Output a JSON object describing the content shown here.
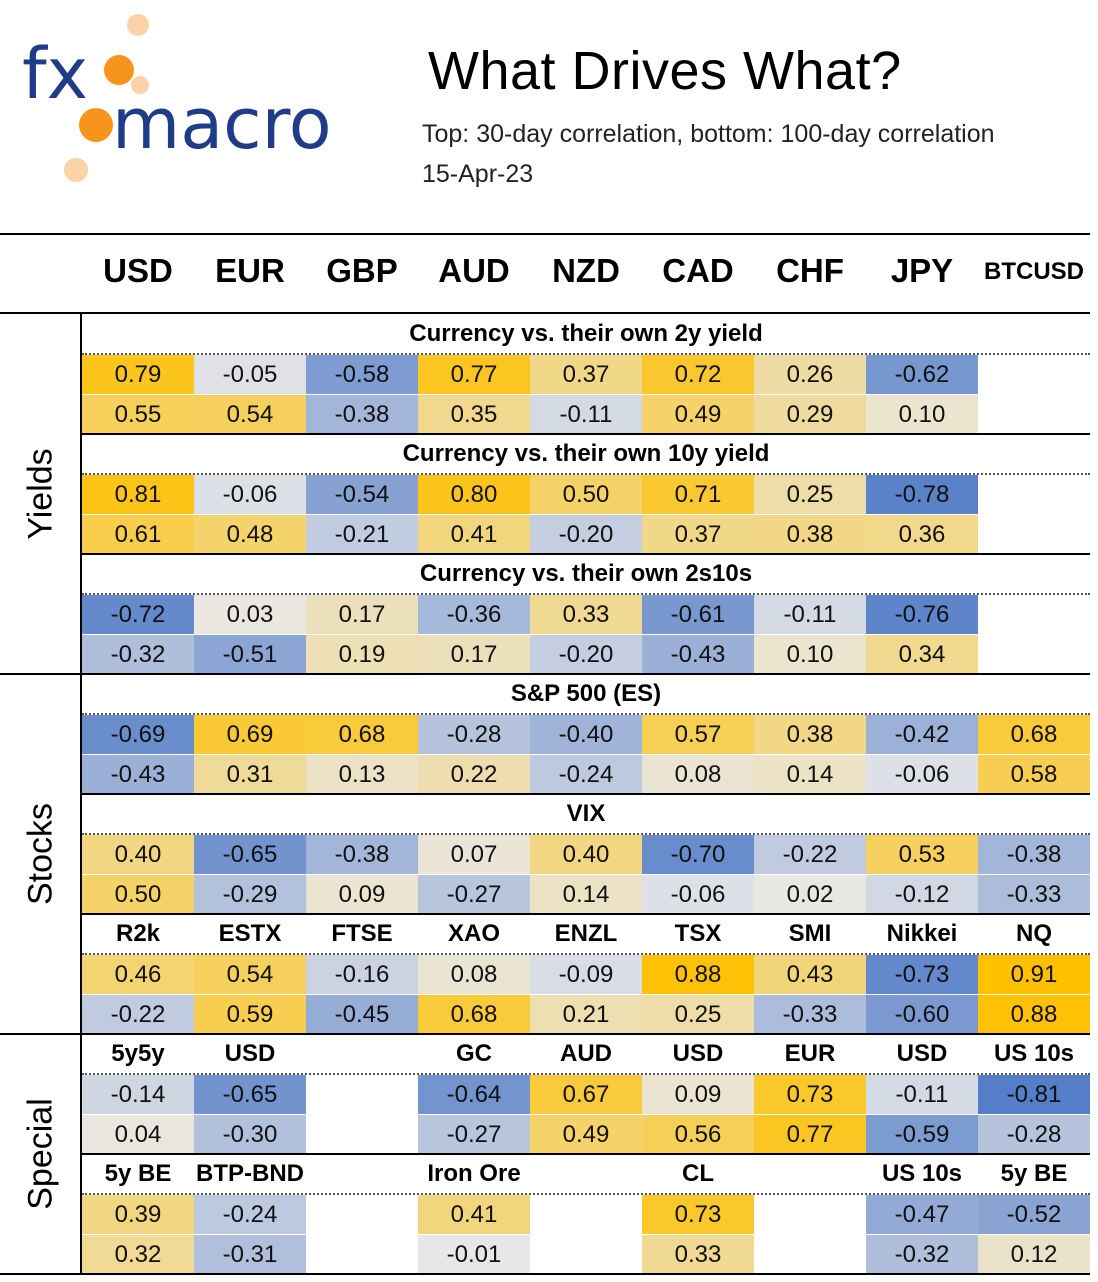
{
  "header": {
    "logo_text_1": "fx",
    "logo_text_2": "macro",
    "title": "What Drives What?",
    "subtitle": "Top: 30-day correlation, bottom: 100-day correlation",
    "date": "15-Apr-23"
  },
  "colors": {
    "positive": "#FFC000",
    "negative": "#4472C4",
    "neutral": "#E8E8E8",
    "logo_blue": "#1F3C88",
    "logo_orange": "#F7941D"
  },
  "chart_data": {
    "type": "table",
    "columns": [
      "USD",
      "EUR",
      "GBP",
      "AUD",
      "NZD",
      "CAD",
      "CHF",
      "JPY",
      "BTCUSD"
    ],
    "groups": [
      "Yields",
      "Stocks",
      "Special"
    ],
    "blocks": [
      {
        "group": "Yields",
        "title": "Currency vs. their own 2y yield",
        "top": [
          0.79,
          -0.05,
          -0.58,
          0.77,
          0.37,
          0.72,
          0.26,
          -0.62,
          null
        ],
        "bottom": [
          0.55,
          0.54,
          -0.38,
          0.35,
          -0.11,
          0.49,
          0.29,
          0.1,
          null
        ]
      },
      {
        "group": "Yields",
        "title": "Currency vs. their own 10y yield",
        "top": [
          0.81,
          -0.06,
          -0.54,
          0.8,
          0.5,
          0.71,
          0.25,
          -0.78,
          null
        ],
        "bottom": [
          0.61,
          0.48,
          -0.21,
          0.41,
          -0.2,
          0.37,
          0.38,
          0.36,
          null
        ]
      },
      {
        "group": "Yields",
        "title": "Currency vs. their own 2s10s",
        "top": [
          -0.72,
          0.03,
          0.17,
          -0.36,
          0.33,
          -0.61,
          -0.11,
          -0.76,
          null
        ],
        "bottom": [
          -0.32,
          -0.51,
          0.19,
          0.17,
          -0.2,
          -0.43,
          0.1,
          0.34,
          null
        ]
      },
      {
        "group": "Stocks",
        "title": "S&P 500 (ES)",
        "top": [
          -0.69,
          0.69,
          0.68,
          -0.28,
          -0.4,
          0.57,
          0.38,
          -0.42,
          0.68
        ],
        "bottom": [
          -0.43,
          0.31,
          0.13,
          0.22,
          -0.24,
          0.08,
          0.14,
          -0.06,
          0.58
        ]
      },
      {
        "group": "Stocks",
        "title": "VIX",
        "top": [
          0.4,
          -0.65,
          -0.38,
          0.07,
          0.4,
          -0.7,
          -0.22,
          0.53,
          -0.38
        ],
        "bottom": [
          0.5,
          -0.29,
          0.09,
          -0.27,
          0.14,
          -0.06,
          0.02,
          -0.12,
          -0.33
        ]
      },
      {
        "group": "Stocks",
        "labels": [
          "R2k",
          "ESTX",
          "FTSE",
          "XAO",
          "ENZL",
          "TSX",
          "SMI",
          "Nikkei",
          "NQ"
        ],
        "top": [
          0.46,
          0.54,
          -0.16,
          0.08,
          -0.09,
          0.88,
          0.43,
          -0.73,
          0.91
        ],
        "bottom": [
          -0.22,
          0.59,
          -0.45,
          0.68,
          0.21,
          0.25,
          -0.33,
          -0.6,
          0.88
        ]
      },
      {
        "group": "Special",
        "labels": [
          "5y5y",
          "USD",
          "",
          "GC",
          "AUD",
          "USD",
          "EUR",
          "USD",
          "US 10s"
        ],
        "top": [
          -0.14,
          -0.65,
          null,
          -0.64,
          0.67,
          0.09,
          0.73,
          -0.11,
          -0.81
        ],
        "bottom": [
          0.04,
          -0.3,
          null,
          -0.27,
          0.49,
          0.56,
          0.77,
          -0.59,
          -0.28
        ]
      },
      {
        "group": "Special",
        "labels": [
          "5y BE",
          "BTP-BND",
          "",
          "Iron Ore",
          "",
          "CL",
          "",
          "US 10s",
          "5y BE"
        ],
        "top": [
          0.39,
          -0.24,
          null,
          0.41,
          null,
          0.73,
          null,
          -0.47,
          -0.52
        ],
        "bottom": [
          0.32,
          -0.31,
          null,
          -0.01,
          null,
          0.33,
          null,
          -0.32,
          0.12
        ]
      }
    ]
  }
}
